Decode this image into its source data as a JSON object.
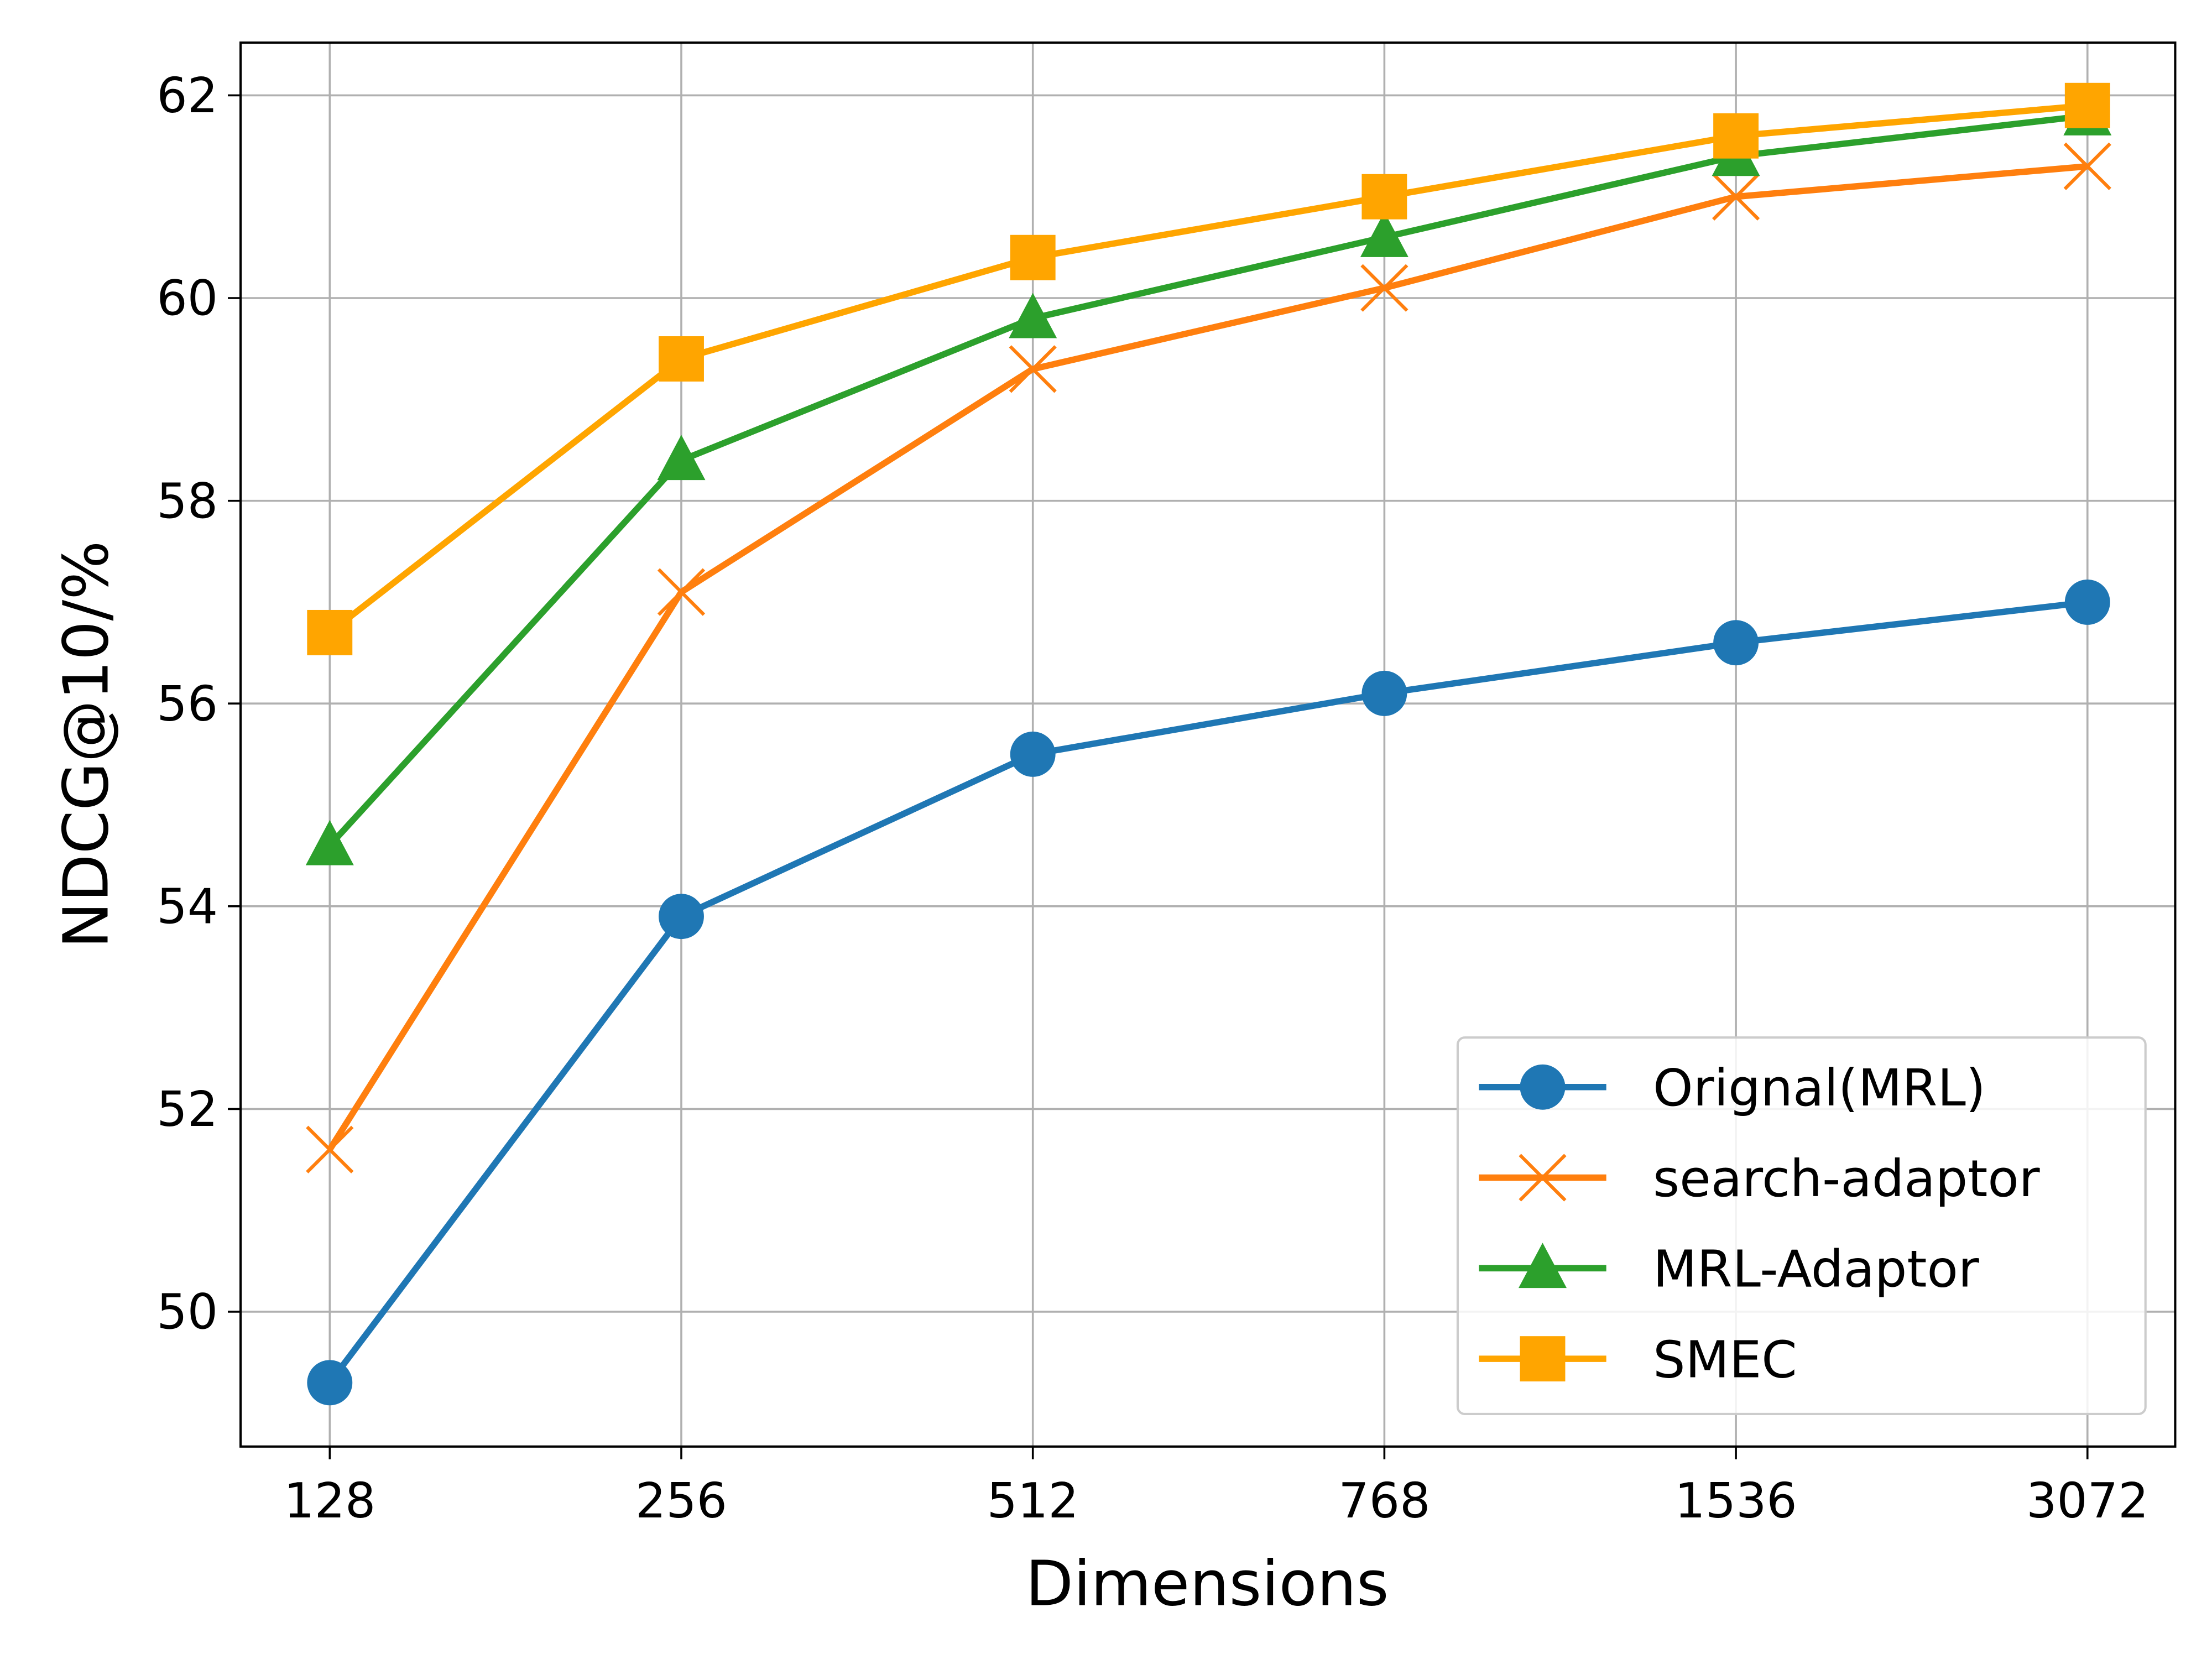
{
  "chart_data": {
    "type": "line",
    "title": "",
    "xlabel": "Dimensions",
    "ylabel": "NDCG@10/%",
    "categories": [
      "128",
      "256",
      "512",
      "768",
      "1536",
      "3072"
    ],
    "ylim": [
      48.67,
      62.52
    ],
    "yticks": [
      50,
      52,
      54,
      56,
      58,
      60,
      62
    ],
    "ytick_labels": [
      "50",
      "52",
      "54",
      "56",
      "58",
      "60",
      "62"
    ],
    "grid": true,
    "legend_position": "bottom-right",
    "series": [
      {
        "name": "Orignal(MRL)",
        "color": "#1f77b4",
        "marker": "circle",
        "values": [
          49.3,
          53.9,
          55.5,
          56.1,
          56.6,
          57.0
        ]
      },
      {
        "name": "search-adaptor",
        "color": "#ff7f0e",
        "marker": "x",
        "values": [
          51.6,
          57.1,
          59.3,
          60.1,
          61.0,
          61.3
        ]
      },
      {
        "name": "MRL-Adaptor",
        "color": "#2ca02c",
        "marker": "triangle",
        "values": [
          54.6,
          58.4,
          59.8,
          60.6,
          61.4,
          61.8
        ]
      },
      {
        "name": "SMEC",
        "color": "#ffa500",
        "marker": "square",
        "values": [
          56.7,
          59.4,
          60.4,
          61.0,
          61.6,
          61.9
        ]
      }
    ]
  }
}
